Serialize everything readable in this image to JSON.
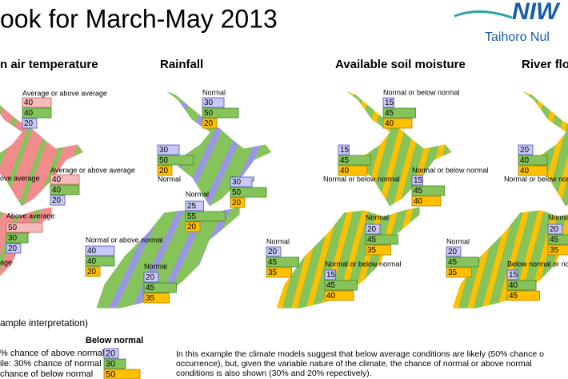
{
  "header": {
    "title": "ook for March-May 2013",
    "logo_mark": "NIW",
    "logo_text": "Taihoro Nul"
  },
  "panels": [
    {
      "title": "n air temperature",
      "colors": [
        "#f7baba",
        "#86c45b",
        "#c9c9f7"
      ],
      "annotations": [
        {
          "label": "Average or above average",
          "values": [
            40,
            40,
            20
          ]
        },
        {
          "label": "ove average",
          "values": []
        },
        {
          "label": "Average or above average",
          "values": [
            40,
            40,
            20
          ]
        },
        {
          "label": "Above average",
          "values": [
            50,
            30,
            20
          ]
        },
        {
          "label": "age",
          "values": []
        }
      ]
    },
    {
      "title": "Rainfall",
      "colors": [
        "#c9c9f7",
        "#86c45b",
        "#ffc000"
      ],
      "annotations": [
        {
          "label": "Normal",
          "values": [
            30,
            50,
            20
          ]
        },
        {
          "label": "Normal",
          "values": [
            30,
            50,
            20
          ]
        },
        {
          "label": "Normal",
          "values": [
            30,
            50,
            20
          ]
        },
        {
          "label": "Normal or above normal",
          "values": [
            40,
            40,
            20
          ]
        },
        {
          "label": "Normal",
          "values": [
            25,
            55,
            20
          ]
        },
        {
          "label": "Normal",
          "values": [
            20,
            45,
            35
          ]
        }
      ]
    },
    {
      "title": "Available soil moisture",
      "colors": [
        "#c9c9f7",
        "#86c45b",
        "#ffc000"
      ],
      "annotations": [
        {
          "label": "Normal or below normal",
          "values": [
            15,
            45,
            40
          ]
        },
        {
          "label": "Normal or below normal",
          "values": [
            15,
            45,
            40
          ]
        },
        {
          "label": "Normal or below normal",
          "values": [
            15,
            45,
            40
          ]
        },
        {
          "label": "Normal",
          "values": [
            20,
            45,
            35
          ]
        },
        {
          "label": "Normal",
          "values": [
            20,
            45,
            35
          ]
        },
        {
          "label": "Normal or below normal",
          "values": [
            15,
            45,
            40
          ]
        }
      ]
    },
    {
      "title": "River flo",
      "colors": [
        "#c9c9f7",
        "#86c45b",
        "#ffc000"
      ],
      "annotations": [
        {
          "label": "Normal or below normal",
          "values": [
            20,
            40,
            40
          ]
        },
        {
          "label": "Normal",
          "values": [
            20,
            45,
            35
          ]
        },
        {
          "label": "Normal",
          "values": [
            20,
            45,
            35
          ]
        },
        {
          "label": "Below normal or no",
          "values": [
            15,
            40,
            45
          ]
        }
      ]
    }
  ],
  "example": {
    "heading": "ample interpretation)",
    "column": "Below normal",
    "rows": [
      {
        "label": "% chance of above normal",
        "value": 20
      },
      {
        "label": "ile: 30% chance of normal",
        "value": 30
      },
      {
        "label": "chance of below normal",
        "value": 50
      }
    ],
    "text": [
      "In this example the climate models suggest that below average conditions are likely (50% chance o",
      "occurrence), but, given the variable nature of the climate, the chance of normal or above normal",
      "conditions is also shown (30% and 20% repectively)."
    ]
  }
}
